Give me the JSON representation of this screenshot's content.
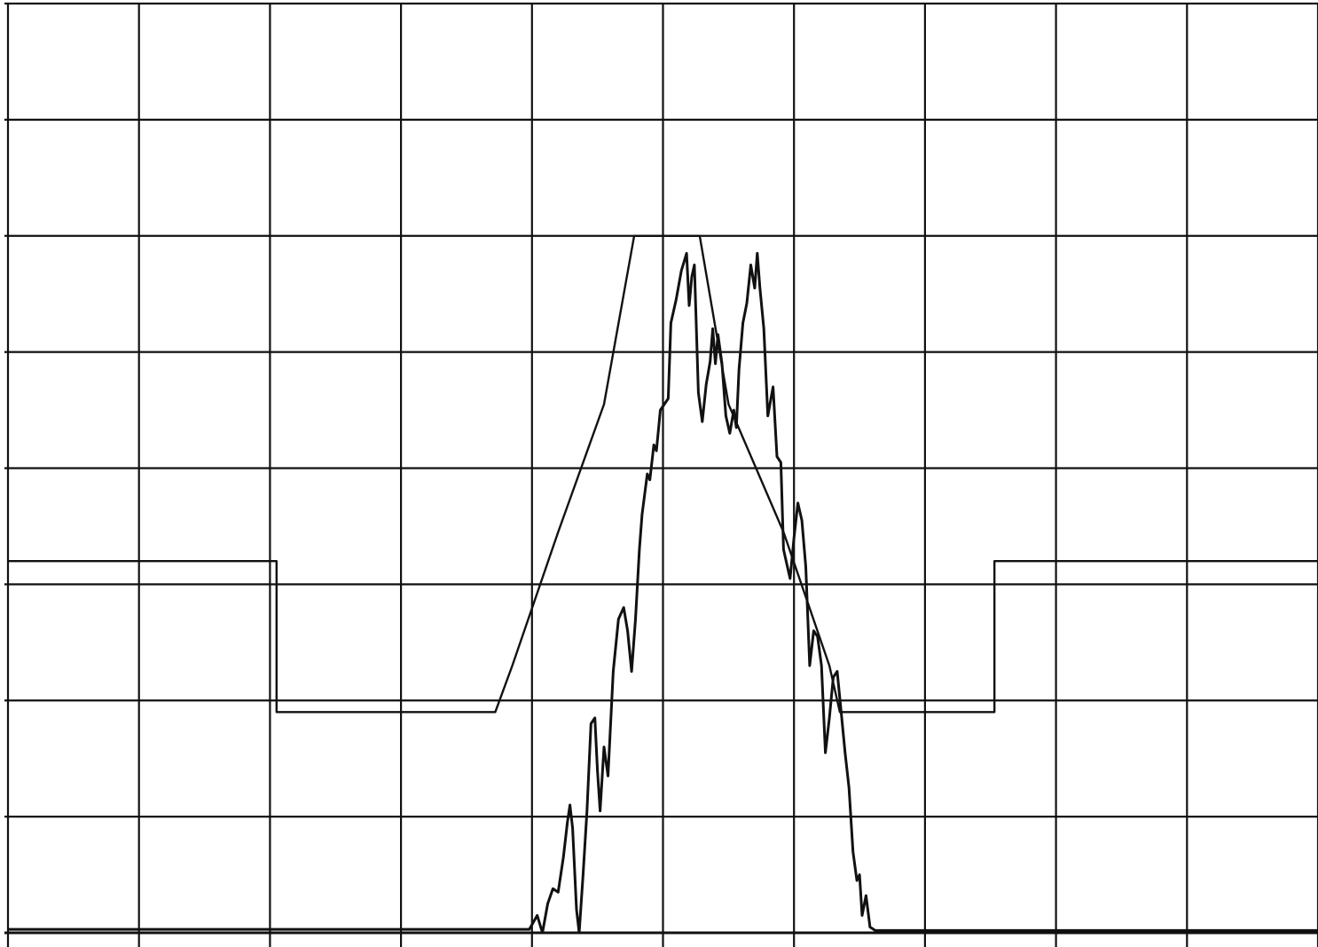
{
  "chart_data": {
    "type": "line",
    "title": "",
    "xlabel": "",
    "ylabel": "",
    "xlim": [
      0,
      10
    ],
    "ylim": [
      0,
      8
    ],
    "x_divisions": 10,
    "y_divisions": 8,
    "grid": true,
    "legend": "none",
    "colors": {
      "background": "#ffffff",
      "grid": "#111111",
      "trace": "#111111",
      "mask": "#111111"
    },
    "series": [
      {
        "kind": "trace",
        "points": [
          [
            0,
            0.03
          ],
          [
            3.88,
            0.03
          ],
          [
            3.98,
            0.03
          ],
          [
            4.04,
            0.15
          ],
          [
            4.08,
            0.0
          ],
          [
            4.12,
            0.25
          ],
          [
            4.16,
            0.38
          ],
          [
            4.2,
            0.35
          ],
          [
            4.24,
            0.65
          ],
          [
            4.27,
            0.95
          ],
          [
            4.29,
            1.1
          ],
          [
            4.31,
            0.9
          ],
          [
            4.34,
            0.2
          ],
          [
            4.36,
            0.0
          ],
          [
            4.39,
            0.5
          ],
          [
            4.42,
            1.05
          ],
          [
            4.45,
            1.8
          ],
          [
            4.48,
            1.85
          ],
          [
            4.5,
            1.4
          ],
          [
            4.52,
            1.05
          ],
          [
            4.55,
            1.6
          ],
          [
            4.58,
            1.35
          ],
          [
            4.62,
            2.25
          ],
          [
            4.66,
            2.7
          ],
          [
            4.7,
            2.8
          ],
          [
            4.73,
            2.6
          ],
          [
            4.76,
            2.25
          ],
          [
            4.79,
            2.7
          ],
          [
            4.82,
            3.3
          ],
          [
            4.84,
            3.6
          ],
          [
            4.88,
            3.95
          ],
          [
            4.9,
            3.9
          ],
          [
            4.93,
            4.2
          ],
          [
            4.95,
            4.15
          ],
          [
            4.98,
            4.5
          ],
          [
            5.01,
            4.55
          ],
          [
            5.04,
            4.6
          ],
          [
            5.06,
            5.25
          ],
          [
            5.1,
            5.45
          ],
          [
            5.14,
            5.7
          ],
          [
            5.18,
            5.85
          ],
          [
            5.2,
            5.4
          ],
          [
            5.22,
            5.65
          ],
          [
            5.24,
            5.75
          ],
          [
            5.27,
            4.65
          ],
          [
            5.3,
            4.4
          ],
          [
            5.33,
            4.72
          ],
          [
            5.36,
            4.92
          ],
          [
            5.38,
            5.2
          ],
          [
            5.4,
            4.9
          ],
          [
            5.42,
            5.15
          ],
          [
            5.45,
            4.9
          ],
          [
            5.48,
            4.45
          ],
          [
            5.51,
            4.3
          ],
          [
            5.54,
            4.5
          ],
          [
            5.56,
            4.35
          ],
          [
            5.58,
            4.85
          ],
          [
            5.61,
            5.25
          ],
          [
            5.64,
            5.42
          ],
          [
            5.67,
            5.75
          ],
          [
            5.7,
            5.55
          ],
          [
            5.72,
            5.85
          ],
          [
            5.74,
            5.55
          ],
          [
            5.77,
            5.2
          ],
          [
            5.8,
            4.45
          ],
          [
            5.84,
            4.7
          ],
          [
            5.87,
            4.1
          ],
          [
            5.9,
            4.05
          ],
          [
            5.92,
            3.3
          ],
          [
            5.95,
            3.15
          ],
          [
            5.97,
            3.05
          ],
          [
            6.0,
            3.4
          ],
          [
            6.03,
            3.7
          ],
          [
            6.06,
            3.55
          ],
          [
            6.09,
            3.15
          ],
          [
            6.12,
            2.3
          ],
          [
            6.15,
            2.6
          ],
          [
            6.18,
            2.55
          ],
          [
            6.21,
            2.3
          ],
          [
            6.24,
            1.55
          ],
          [
            6.27,
            1.85
          ],
          [
            6.3,
            2.2
          ],
          [
            6.33,
            2.25
          ],
          [
            6.36,
            1.9
          ],
          [
            6.39,
            1.55
          ],
          [
            6.42,
            1.25
          ],
          [
            6.45,
            0.7
          ],
          [
            6.48,
            0.45
          ],
          [
            6.5,
            0.5
          ],
          [
            6.52,
            0.15
          ],
          [
            6.55,
            0.32
          ],
          [
            6.58,
            0.05
          ],
          [
            6.62,
            0.02
          ],
          [
            10,
            0.02
          ]
        ]
      },
      {
        "kind": "mask",
        "points": [
          [
            0,
            3.2
          ],
          [
            2.05,
            3.2
          ],
          [
            2.05,
            1.9
          ],
          [
            3.72,
            1.9
          ],
          [
            3.85,
            2.3
          ],
          [
            4.2,
            3.45
          ],
          [
            4.55,
            4.55
          ],
          [
            4.78,
            6.0
          ],
          [
            5.28,
            6.0
          ],
          [
            5.5,
            4.55
          ],
          [
            5.92,
            3.45
          ],
          [
            6.27,
            2.3
          ],
          [
            6.35,
            1.9
          ],
          [
            7.53,
            1.9
          ],
          [
            7.53,
            3.2
          ],
          [
            10,
            3.2
          ]
        ]
      }
    ]
  }
}
